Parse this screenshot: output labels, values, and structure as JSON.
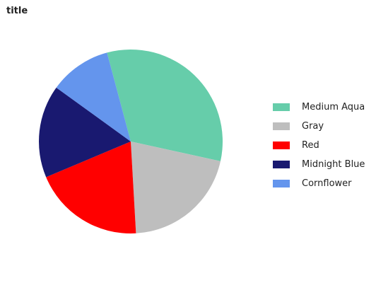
{
  "chart_data": {
    "type": "pie",
    "title": "title",
    "legend_position": "right",
    "slices": [
      {
        "label": "Medium Aqua",
        "value": 30,
        "color": "#66cdaa"
      },
      {
        "label": "Gray",
        "value": 19,
        "color": "#bebebe"
      },
      {
        "label": "Red",
        "value": 18,
        "color": "#ff0000"
      },
      {
        "label": "Midnight Blue",
        "value": 15,
        "color": "#191970"
      },
      {
        "label": "Cornflower",
        "value": 10,
        "color": "#6495ed"
      }
    ]
  }
}
